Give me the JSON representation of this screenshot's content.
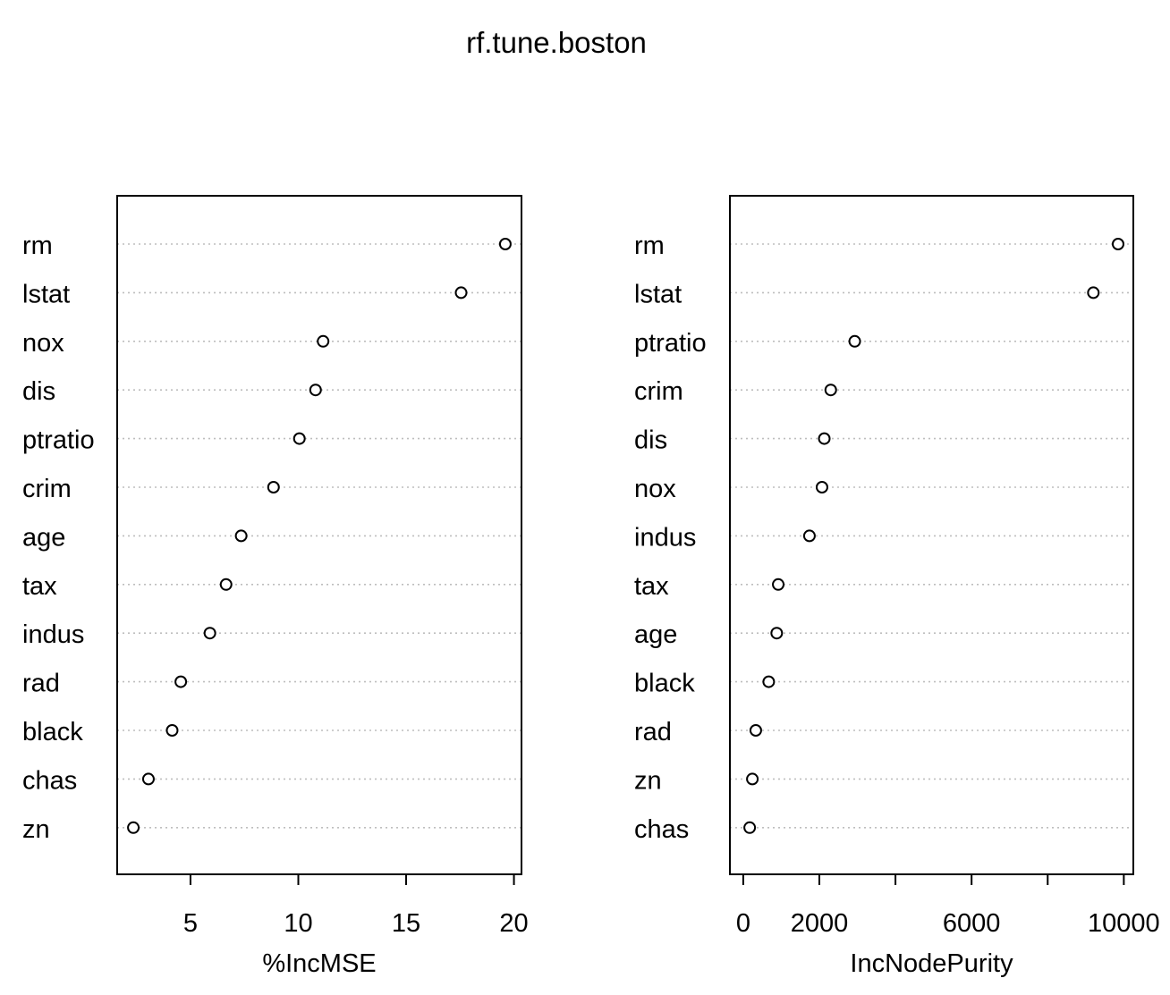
{
  "chart_data": {
    "type": "scatter",
    "title": "rf.tune.boston",
    "panels": [
      {
        "xlabel": "%IncMSE",
        "xlim": [
          1.6,
          20.35
        ],
        "xticks": [
          5,
          10,
          15,
          20
        ],
        "xtick_labels": [
          "5",
          "10",
          "15",
          "20"
        ],
        "categories": [
          "rm",
          "lstat",
          "nox",
          "dis",
          "ptratio",
          "crim",
          "age",
          "tax",
          "indus",
          "rad",
          "black",
          "chas",
          "zn"
        ],
        "values": [
          19.6,
          17.55,
          11.15,
          10.8,
          10.05,
          8.85,
          7.35,
          6.65,
          5.9,
          4.55,
          4.15,
          3.05,
          2.35
        ],
        "grid": true,
        "marker": "open-circle"
      },
      {
        "xlabel": "IncNodePurity",
        "xlim": [
          -350,
          10250
        ],
        "xticks": [
          0,
          2000,
          4000,
          6000,
          8000,
          10000
        ],
        "xtick_labels": [
          "0",
          "2000",
          "",
          "6000",
          "",
          "10000"
        ],
        "categories": [
          "rm",
          "lstat",
          "ptratio",
          "crim",
          "dis",
          "nox",
          "indus",
          "tax",
          "age",
          "black",
          "rad",
          "zn",
          "chas"
        ],
        "values": [
          9850,
          9200,
          2930,
          2300,
          2130,
          2070,
          1740,
          920,
          880,
          670,
          330,
          240,
          170
        ],
        "grid": true,
        "marker": "open-circle"
      }
    ]
  }
}
